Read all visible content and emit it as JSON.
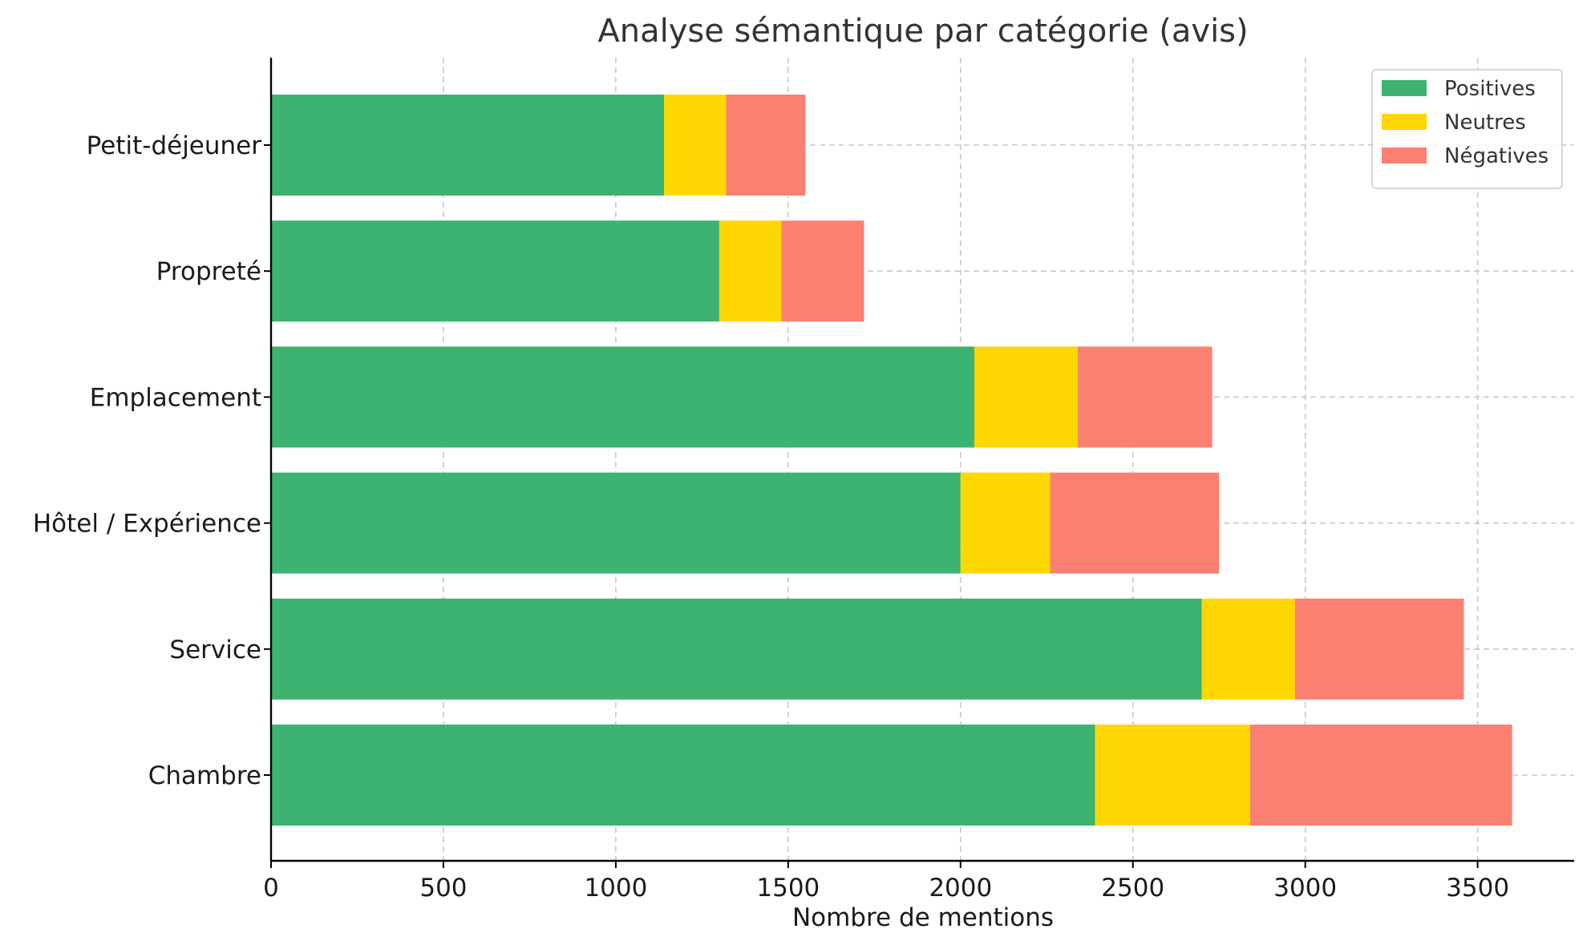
{
  "chart_data": {
    "type": "bar",
    "orientation": "horizontal",
    "stacked": true,
    "title": "Analyse sémantique par catégorie (avis)",
    "xlabel": "Nombre de mentions",
    "ylabel": "",
    "categories": [
      "Petit-déjeuner",
      "Propreté",
      "Emplacement",
      "Hôtel / Expérience",
      "Service",
      "Chambre"
    ],
    "series": [
      {
        "name": "Positives",
        "color": "#3cb371",
        "values": [
          1140,
          1300,
          2040,
          2000,
          2700,
          2390
        ]
      },
      {
        "name": "Neutres",
        "color": "#ffd700",
        "values": [
          180,
          180,
          300,
          260,
          270,
          450
        ]
      },
      {
        "name": "Négatives",
        "color": "#fa8072",
        "values": [
          230,
          240,
          390,
          490,
          490,
          760
        ]
      }
    ],
    "xlim": [
      0,
      3780
    ],
    "xticks": [
      0,
      500,
      1000,
      1500,
      2000,
      2500,
      3000,
      3500
    ],
    "xtick_labels": [
      "0",
      "500",
      "1000",
      "1500",
      "2000",
      "2500",
      "3000",
      "3500"
    ],
    "grid": true,
    "legend_position": "top-right"
  }
}
